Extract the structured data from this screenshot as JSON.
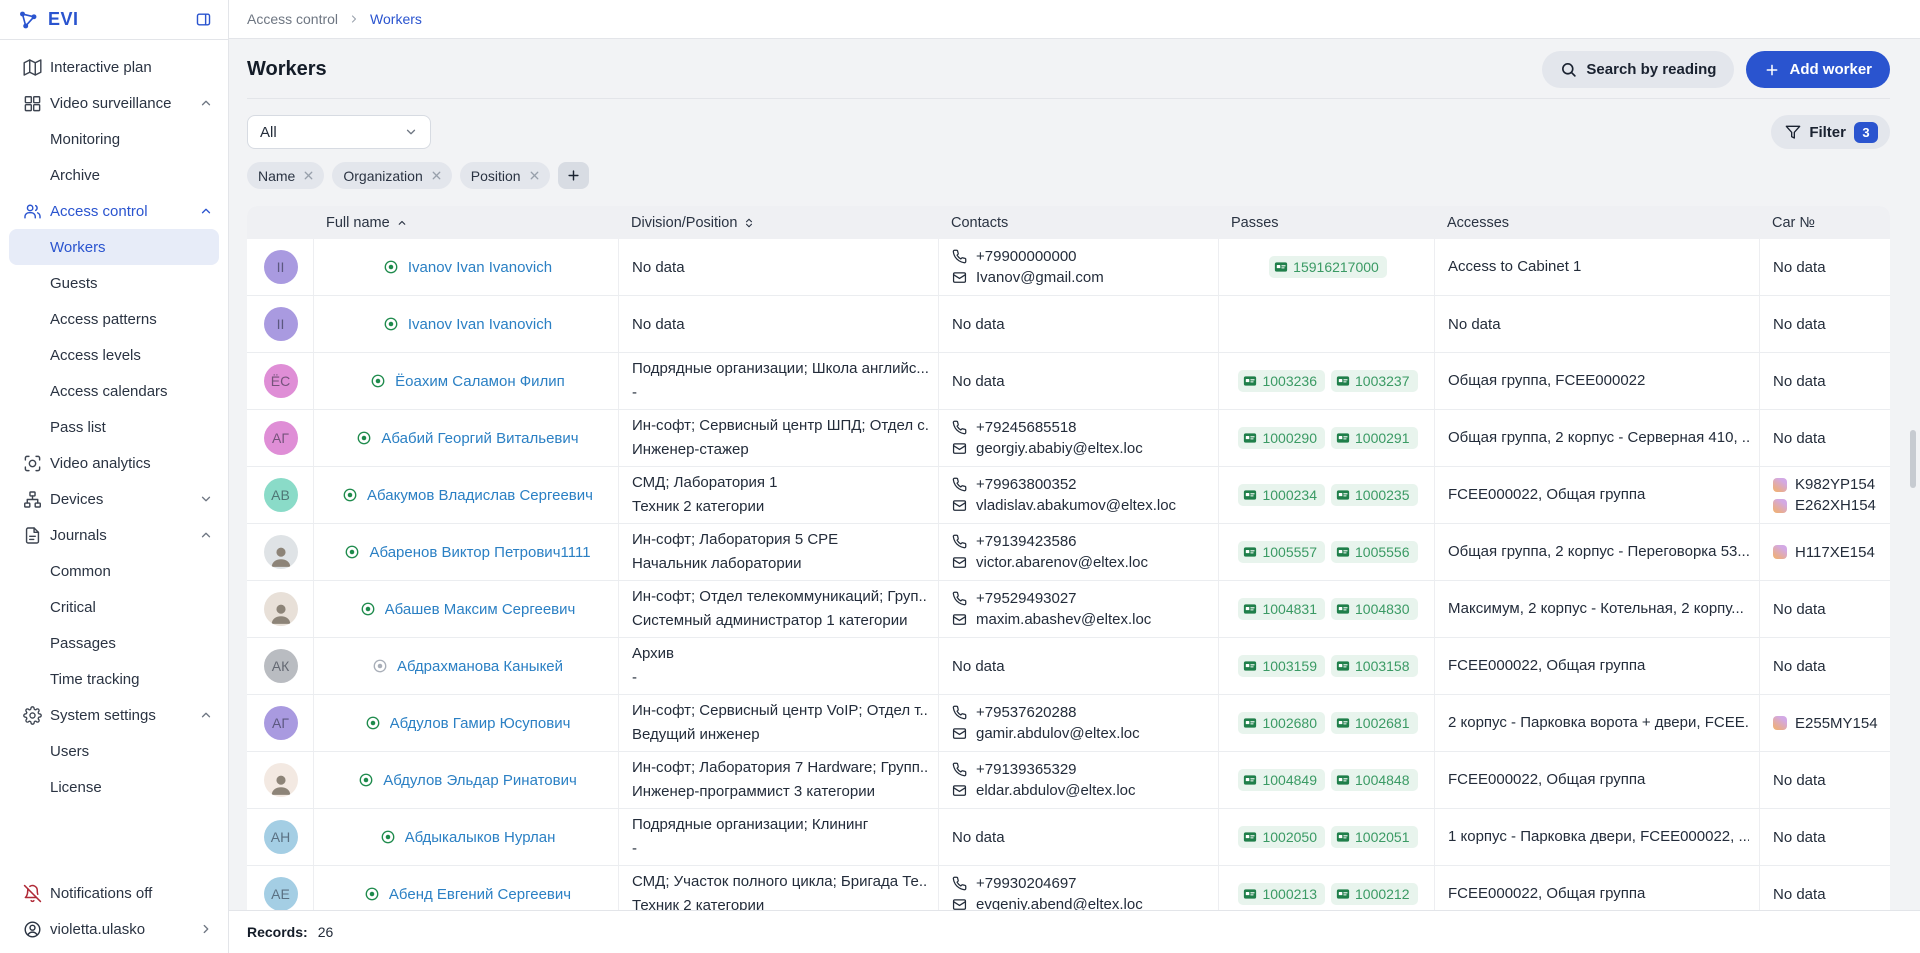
{
  "app": {
    "name": "EVI"
  },
  "colors": {
    "accent": "#2a54cf",
    "link": "#2b80c4",
    "pass_text": "#3a9a64",
    "pass_bg": "#e8f4ed",
    "alert_red": "#b02a37",
    "active_bg": "#e7ecf8"
  },
  "sidebar": {
    "logo_text": "EVI",
    "items": [
      {
        "label": "Interactive plan",
        "icon": "interactive-plan-icon",
        "level": 0
      },
      {
        "label": "Video surveillance",
        "icon": "video-surveillance-icon",
        "level": 0,
        "chevron": "up"
      },
      {
        "label": "Monitoring",
        "level": 1
      },
      {
        "label": "Archive",
        "level": 1
      },
      {
        "label": "Access control",
        "icon": "access-control-icon",
        "level": 0,
        "chevron": "up",
        "accent": true
      },
      {
        "label": "Workers",
        "level": 1,
        "active": true
      },
      {
        "label": "Guests",
        "level": 1
      },
      {
        "label": "Access patterns",
        "level": 1
      },
      {
        "label": "Access levels",
        "level": 1
      },
      {
        "label": "Access calendars",
        "level": 1
      },
      {
        "label": "Pass list",
        "level": 1
      },
      {
        "label": "Video analytics",
        "icon": "video-analytics-icon",
        "level": 0
      },
      {
        "label": "Devices",
        "icon": "devices-icon",
        "level": 0,
        "chevron": "down"
      },
      {
        "label": "Journals",
        "icon": "journals-icon",
        "level": 0,
        "chevron": "up"
      },
      {
        "label": "Common",
        "level": 1
      },
      {
        "label": "Critical",
        "level": 1
      },
      {
        "label": "Passages",
        "level": 1
      },
      {
        "label": "Time tracking",
        "level": 1
      },
      {
        "label": "System settings",
        "icon": "system-settings-icon",
        "level": 0,
        "chevron": "up"
      },
      {
        "label": "Users",
        "level": 1
      },
      {
        "label": "License",
        "level": 1
      }
    ],
    "footer": [
      {
        "label": "Notifications off",
        "icon": "bell-off-icon",
        "red": true
      },
      {
        "label": "violetta.ulasko",
        "icon": "user-circle-icon",
        "chevron": "right"
      }
    ]
  },
  "breadcrumb": {
    "parent": "Access control",
    "current": "Workers"
  },
  "header": {
    "title": "Workers",
    "search_button": "Search by reading",
    "add_button": "Add worker"
  },
  "toolbar": {
    "scope_value": "All",
    "filter_label": "Filter",
    "filter_count": "3",
    "chips": [
      "Name",
      "Organization",
      "Position"
    ]
  },
  "table": {
    "columns": [
      {
        "label": "Full name",
        "sort": "asc"
      },
      {
        "label": "Division/Position",
        "sort": "both"
      },
      {
        "label": "Contacts"
      },
      {
        "label": "Passes"
      },
      {
        "label": "Accesses"
      },
      {
        "label": "Car №"
      }
    ],
    "no_data_text": "No data",
    "rows": [
      {
        "avatar": {
          "type": "initials",
          "text": "II",
          "color": "#a99ae0"
        },
        "status": "active",
        "name": "Ivanov Ivan Ivanovich",
        "division": null,
        "contacts": {
          "phone": "+79900000000",
          "email": "Ivanov@gmail.com"
        },
        "passes": [
          "15916217000"
        ],
        "accesses": "Access to Cabinet 1",
        "cars": null
      },
      {
        "avatar": {
          "type": "initials",
          "text": "II",
          "color": "#a99ae0"
        },
        "status": "active",
        "name": "Ivanov Ivan Ivanovich",
        "division": null,
        "contacts": null,
        "passes": [],
        "accesses": null,
        "cars": null
      },
      {
        "avatar": {
          "type": "initials",
          "text": "ЁС",
          "color": "#df8ed6"
        },
        "status": "active",
        "name": "Ёоахим Саламон Филип",
        "division": [
          "Подрядные организации; Школа английс...",
          "-"
        ],
        "contacts": null,
        "passes": [
          "1003236",
          "1003237"
        ],
        "accesses": "Общая группа, FCEE000022",
        "cars": null
      },
      {
        "avatar": {
          "type": "initials",
          "text": "АГ",
          "color": "#df8ed6"
        },
        "status": "active",
        "name": "Абабий Георгий Витальевич",
        "division": [
          "Ин-софт; Сервисный центр ШПД; Отдел с...",
          "Инженер-стажер"
        ],
        "contacts": {
          "phone": "+79245685518",
          "email": "georgiy.ababiy@eltex.loc"
        },
        "passes": [
          "1000290",
          "1000291"
        ],
        "accesses": "Общая группа, 2 корпус - Серверная 410, ...",
        "cars": null
      },
      {
        "avatar": {
          "type": "initials",
          "text": "АВ",
          "color": "#8adbc8"
        },
        "status": "active",
        "name": "Абакумов Владислав Сергеевич",
        "division": [
          "СМД; Лаборатория 1",
          "Техник 2 категории"
        ],
        "contacts": {
          "phone": "+79963800352",
          "email": "vladislav.abakumov@eltex.loc"
        },
        "passes": [
          "1000234",
          "1000235"
        ],
        "accesses": "FCEE000022, Общая группа",
        "cars": [
          "K982YP154",
          "E262XH154"
        ]
      },
      {
        "avatar": {
          "type": "photo",
          "bg": "#dfe3e6"
        },
        "status": "active",
        "name": "Абаренов Виктор Петрович1111",
        "division": [
          "Ин-софт; Лаборатория 5 CPE",
          "Начальник лаборатории"
        ],
        "contacts": {
          "phone": "+79139423586",
          "email": "victor.abarenov@eltex.loc"
        },
        "passes": [
          "1005557",
          "1005556"
        ],
        "accesses": "Общая группа, 2 корпус - Переговорка 53...",
        "cars": [
          "H117XE154"
        ]
      },
      {
        "avatar": {
          "type": "photo",
          "bg": "#e8e0d8"
        },
        "status": "active",
        "name": "Абашев Максим Сергеевич",
        "division": [
          "Ин-софт; Отдел телекоммуникаций; Груп...",
          "Системный администратор 1 категории"
        ],
        "contacts": {
          "phone": "+79529493027",
          "email": "maxim.abashev@eltex.loc"
        },
        "passes": [
          "1004831",
          "1004830"
        ],
        "accesses": "Максимум, 2 корпус - Котельная, 2 корпу...",
        "cars": null
      },
      {
        "avatar": {
          "type": "initials",
          "text": "АК",
          "color": "#b9bcc1"
        },
        "status": "archived",
        "name": "Абдрахманова Каныкей",
        "division": [
          "Архив",
          "-"
        ],
        "contacts": null,
        "passes": [
          "1003159",
          "1003158"
        ],
        "accesses": "FCEE000022, Общая группа",
        "cars": null
      },
      {
        "avatar": {
          "type": "initials",
          "text": "АГ",
          "color": "#a99ae0"
        },
        "status": "active",
        "name": "Абдулов Гамир Юсупович",
        "division": [
          "Ин-софт; Сервисный центр VoIP; Отдел т...",
          "Ведущий инженер"
        ],
        "contacts": {
          "phone": "+79537620288",
          "email": "gamir.abdulov@eltex.loc"
        },
        "passes": [
          "1002680",
          "1002681"
        ],
        "accesses": "2 корпус - Парковка ворота + двери, FCEE...",
        "cars": [
          "E255MY154"
        ]
      },
      {
        "avatar": {
          "type": "photo",
          "bg": "#f3e9e2"
        },
        "status": "active",
        "name": "Абдулов Эльдар Ринатович",
        "division": [
          "Ин-софт; Лаборатория 7 Hardware; Групп...",
          "Инженер-программист 3 категории"
        ],
        "contacts": {
          "phone": "+79139365329",
          "email": "eldar.abdulov@eltex.loc"
        },
        "passes": [
          "1004849",
          "1004848"
        ],
        "accesses": "FCEE000022, Общая группа",
        "cars": null
      },
      {
        "avatar": {
          "type": "initials",
          "text": "АН",
          "color": "#a4cee4"
        },
        "status": "active",
        "name": "Абдыкалыков Нурлан",
        "division": [
          "Подрядные организации; Клининг",
          "-"
        ],
        "contacts": null,
        "passes": [
          "1002050",
          "1002051"
        ],
        "accesses": "1 корпус - Парковка двери, FCEE000022, ...",
        "cars": null
      },
      {
        "avatar": {
          "type": "initials",
          "text": "АЕ",
          "color": "#a4cee4"
        },
        "status": "active",
        "name": "Абенд Евгений Сергеевич",
        "division": [
          "СМД; Участок полного цикла; Бригада Те...",
          "Техник 2 категории"
        ],
        "contacts": {
          "phone": "+79930204697",
          "email": "evgeniy.abend@eltex.loc"
        },
        "passes": [
          "1000213",
          "1000212"
        ],
        "accesses": "FCEE000022, Общая группа",
        "cars": null
      }
    ]
  },
  "statusbar": {
    "records_label": "Records:",
    "records_value": "26"
  }
}
